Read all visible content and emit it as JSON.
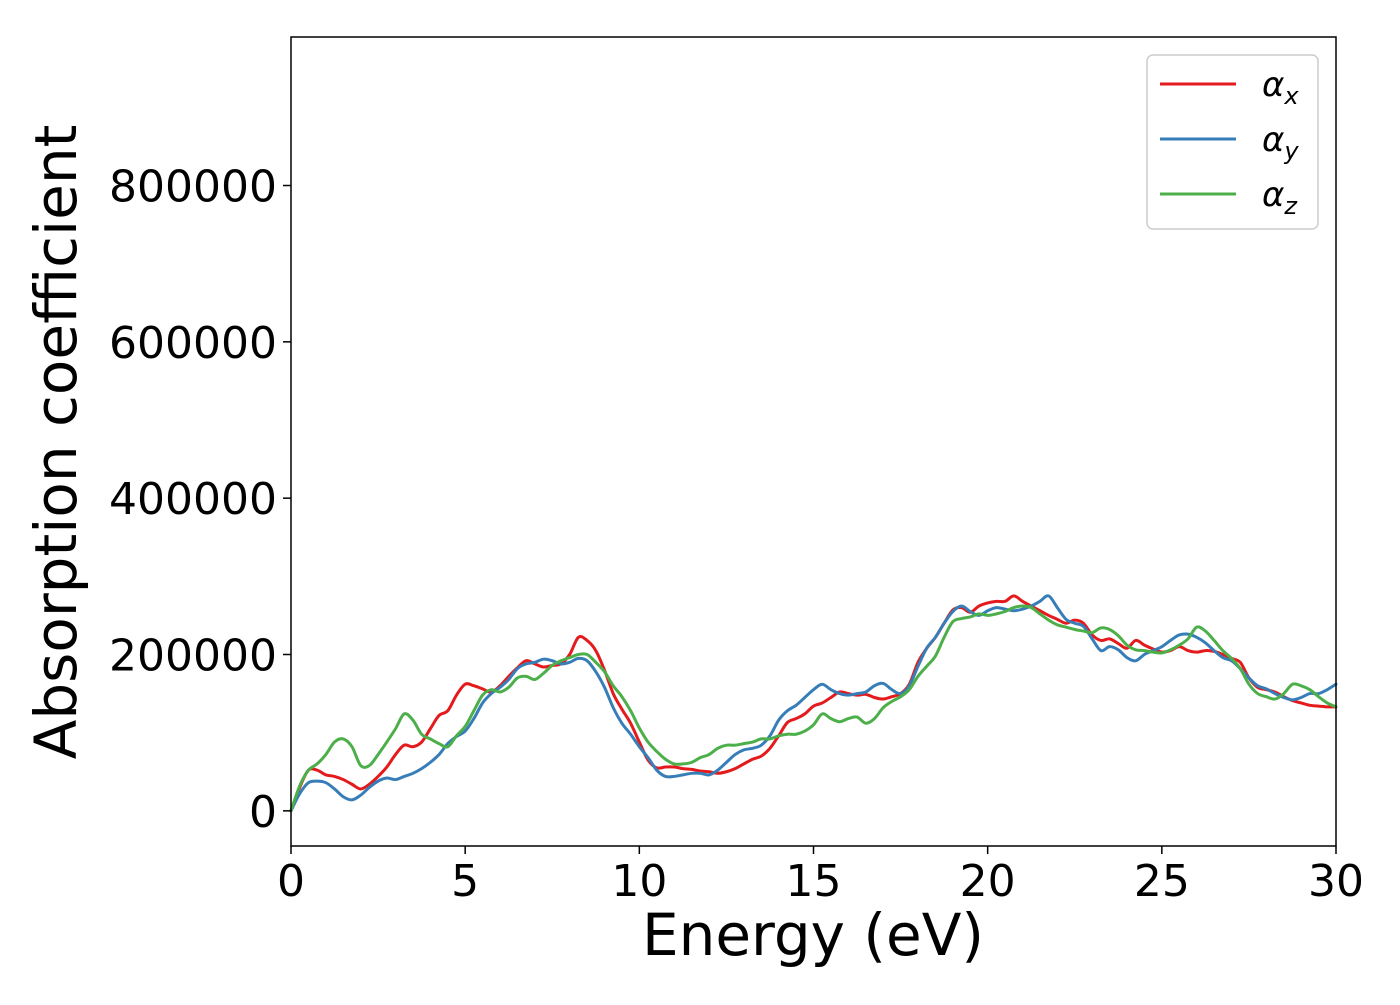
{
  "chart_data": {
    "type": "line",
    "title": "",
    "xlabel": "Energy (eV)",
    "ylabel": "Absorption coefficient",
    "xlim": [
      0,
      30
    ],
    "ylim": [
      -45000,
      990000
    ],
    "xticks": [
      0,
      5,
      10,
      15,
      20,
      25,
      30
    ],
    "yticks": [
      0,
      200000,
      400000,
      600000,
      800000
    ],
    "grid": false,
    "legend": {
      "position": "top-right",
      "entries": [
        {
          "symbol": "α",
          "subscript": "x"
        },
        {
          "symbol": "α",
          "subscript": "y"
        },
        {
          "symbol": "α",
          "subscript": "z"
        }
      ]
    },
    "series": [
      {
        "name": "αx",
        "color": "#e41a1c",
        "x": [
          0,
          0.25,
          0.5,
          0.75,
          1.0,
          1.25,
          1.5,
          1.75,
          2.0,
          2.25,
          2.5,
          2.75,
          3.0,
          3.25,
          3.5,
          3.75,
          4.0,
          4.25,
          4.5,
          4.75,
          5.0,
          5.25,
          5.5,
          5.75,
          6.0,
          6.25,
          6.5,
          6.75,
          7.0,
          7.25,
          7.5,
          7.75,
          8.0,
          8.25,
          8.5,
          8.75,
          9.0,
          9.25,
          9.5,
          9.75,
          10.0,
          10.25,
          10.5,
          10.75,
          11.0,
          11.25,
          11.5,
          11.75,
          12.0,
          12.25,
          12.5,
          12.75,
          13.0,
          13.25,
          13.5,
          13.75,
          14.0,
          14.25,
          14.5,
          14.75,
          15.0,
          15.25,
          15.5,
          15.75,
          16.0,
          16.25,
          16.5,
          16.75,
          17.0,
          17.25,
          17.5,
          17.75,
          18.0,
          18.25,
          18.5,
          18.75,
          19.0,
          19.25,
          19.5,
          19.75,
          20.0,
          20.25,
          20.5,
          20.75,
          21.0,
          21.25,
          21.5,
          21.75,
          22.0,
          22.25,
          22.5,
          22.75,
          23.0,
          23.25,
          23.5,
          23.75,
          24.0,
          24.25,
          24.5,
          24.75,
          25.0,
          25.25,
          25.5,
          25.75,
          26.0,
          26.25,
          26.5,
          26.75,
          27.0,
          27.25,
          27.5,
          27.75,
          28.0,
          28.25,
          28.5,
          28.75,
          29.0,
          29.25,
          29.5,
          29.75,
          30.0
        ],
        "y": [
          0,
          30000,
          52000,
          52000,
          46000,
          44000,
          40000,
          34000,
          28000,
          34000,
          44000,
          56000,
          72000,
          84000,
          82000,
          88000,
          105000,
          122000,
          128000,
          148000,
          162000,
          160000,
          156000,
          152000,
          160000,
          172000,
          183000,
          192000,
          188000,
          184000,
          186000,
          188000,
          200000,
          222000,
          218000,
          205000,
          180000,
          150000,
          130000,
          112000,
          88000,
          65000,
          55000,
          56000,
          56000,
          54000,
          53000,
          51000,
          50000,
          48000,
          50000,
          54000,
          60000,
          66000,
          70000,
          80000,
          96000,
          113000,
          118000,
          124000,
          134000,
          138000,
          145000,
          152000,
          150000,
          148000,
          149000,
          145000,
          143000,
          146000,
          150000,
          162000,
          190000,
          208000,
          222000,
          240000,
          257000,
          260000,
          254000,
          262000,
          266000,
          268000,
          268000,
          275000,
          268000,
          262000,
          256000,
          250000,
          245000,
          240000,
          244000,
          240000,
          225000,
          218000,
          220000,
          214000,
          208000,
          218000,
          212000,
          207000,
          203000,
          205000,
          210000,
          205000,
          203000,
          205000,
          204000,
          200000,
          195000,
          190000,
          170000,
          158000,
          155000,
          152000,
          146000,
          141000,
          138000,
          135000,
          134000,
          133000,
          133000
        ]
      },
      {
        "name": "αy",
        "color": "#377eb8",
        "x": [
          0,
          0.25,
          0.5,
          0.75,
          1.0,
          1.25,
          1.5,
          1.75,
          2.0,
          2.25,
          2.5,
          2.75,
          3.0,
          3.25,
          3.5,
          3.75,
          4.0,
          4.25,
          4.5,
          4.75,
          5.0,
          5.25,
          5.5,
          5.75,
          6.0,
          6.25,
          6.5,
          6.75,
          7.0,
          7.25,
          7.5,
          7.75,
          8.0,
          8.25,
          8.5,
          8.75,
          9.0,
          9.25,
          9.5,
          9.75,
          10.0,
          10.25,
          10.5,
          10.75,
          11.0,
          11.25,
          11.5,
          11.75,
          12.0,
          12.25,
          12.5,
          12.75,
          13.0,
          13.25,
          13.5,
          13.75,
          14.0,
          14.25,
          14.5,
          14.75,
          15.0,
          15.25,
          15.5,
          15.75,
          16.0,
          16.25,
          16.5,
          16.75,
          17.0,
          17.25,
          17.5,
          17.75,
          18.0,
          18.25,
          18.5,
          18.75,
          19.0,
          19.25,
          19.5,
          19.75,
          20.0,
          20.25,
          20.5,
          20.75,
          21.0,
          21.25,
          21.5,
          21.75,
          22.0,
          22.25,
          22.5,
          22.75,
          23.0,
          23.25,
          23.5,
          23.75,
          24.0,
          24.25,
          24.5,
          24.75,
          25.0,
          25.25,
          25.5,
          25.75,
          26.0,
          26.25,
          26.5,
          26.75,
          27.0,
          27.25,
          27.5,
          27.75,
          28.0,
          28.25,
          28.5,
          28.75,
          29.0,
          29.25,
          29.5,
          29.75,
          30.0
        ],
        "y": [
          0,
          22000,
          36000,
          38000,
          36000,
          28000,
          18000,
          14000,
          20000,
          30000,
          38000,
          42000,
          40000,
          44000,
          48000,
          54000,
          62000,
          72000,
          86000,
          95000,
          102000,
          118000,
          138000,
          150000,
          158000,
          168000,
          182000,
          188000,
          190000,
          194000,
          192000,
          188000,
          190000,
          195000,
          192000,
          178000,
          158000,
          132000,
          112000,
          98000,
          82000,
          68000,
          52000,
          44000,
          44000,
          46000,
          48000,
          48000,
          46000,
          52000,
          62000,
          72000,
          78000,
          80000,
          84000,
          96000,
          116000,
          128000,
          135000,
          145000,
          155000,
          162000,
          155000,
          150000,
          148000,
          150000,
          152000,
          160000,
          163000,
          155000,
          150000,
          160000,
          185000,
          208000,
          222000,
          240000,
          255000,
          262000,
          255000,
          250000,
          256000,
          260000,
          258000,
          256000,
          258000,
          262000,
          268000,
          275000,
          260000,
          245000,
          240000,
          236000,
          220000,
          205000,
          210000,
          206000,
          196000,
          192000,
          200000,
          205000,
          210000,
          218000,
          225000,
          226000,
          222000,
          215000,
          205000,
          196000,
          192000,
          182000,
          170000,
          160000,
          156000,
          150000,
          145000,
          142000,
          145000,
          150000,
          150000,
          155000,
          162000
        ]
      },
      {
        "name": "αz",
        "color": "#4daf4a",
        "x": [
          0,
          0.25,
          0.5,
          0.75,
          1.0,
          1.25,
          1.5,
          1.75,
          2.0,
          2.25,
          2.5,
          2.75,
          3.0,
          3.25,
          3.5,
          3.75,
          4.0,
          4.25,
          4.5,
          4.75,
          5.0,
          5.25,
          5.5,
          5.75,
          6.0,
          6.25,
          6.5,
          6.75,
          7.0,
          7.25,
          7.5,
          7.75,
          8.0,
          8.25,
          8.5,
          8.75,
          9.0,
          9.25,
          9.5,
          9.75,
          10.0,
          10.25,
          10.5,
          10.75,
          11.0,
          11.25,
          11.5,
          11.75,
          12.0,
          12.25,
          12.5,
          12.75,
          13.0,
          13.25,
          13.5,
          13.75,
          14.0,
          14.25,
          14.5,
          14.75,
          15.0,
          15.25,
          15.5,
          15.75,
          16.0,
          16.25,
          16.5,
          16.75,
          17.0,
          17.25,
          17.5,
          17.75,
          18.0,
          18.25,
          18.5,
          18.75,
          19.0,
          19.25,
          19.5,
          19.75,
          20.0,
          20.25,
          20.5,
          20.75,
          21.0,
          21.25,
          21.5,
          21.75,
          22.0,
          22.25,
          22.5,
          22.75,
          23.0,
          23.25,
          23.5,
          23.75,
          24.0,
          24.25,
          24.5,
          24.75,
          25.0,
          25.25,
          25.5,
          25.75,
          26.0,
          26.25,
          26.5,
          26.75,
          27.0,
          27.25,
          27.5,
          27.75,
          28.0,
          28.25,
          28.5,
          28.75,
          29.0,
          29.25,
          29.5,
          29.75,
          30.0
        ],
        "y": [
          0,
          32000,
          52000,
          60000,
          72000,
          88000,
          92000,
          82000,
          58000,
          58000,
          72000,
          88000,
          105000,
          124000,
          116000,
          98000,
          92000,
          86000,
          82000,
          96000,
          108000,
          128000,
          148000,
          155000,
          152000,
          158000,
          170000,
          172000,
          168000,
          176000,
          186000,
          192000,
          196000,
          200000,
          200000,
          190000,
          178000,
          160000,
          146000,
          128000,
          106000,
          88000,
          76000,
          66000,
          60000,
          60000,
          62000,
          68000,
          72000,
          80000,
          84000,
          84000,
          86000,
          88000,
          92000,
          92000,
          96000,
          98000,
          98000,
          102000,
          110000,
          124000,
          118000,
          114000,
          118000,
          120000,
          112000,
          118000,
          132000,
          140000,
          146000,
          155000,
          172000,
          185000,
          198000,
          222000,
          242000,
          246000,
          248000,
          252000,
          250000,
          252000,
          255000,
          260000,
          262000,
          260000,
          252000,
          244000,
          238000,
          235000,
          232000,
          230000,
          228000,
          234000,
          232000,
          224000,
          212000,
          206000,
          205000,
          203000,
          202000,
          206000,
          212000,
          220000,
          235000,
          230000,
          218000,
          205000,
          195000,
          182000,
          162000,
          150000,
          146000,
          143000,
          150000,
          162000,
          160000,
          155000,
          146000,
          138000,
          133000
        ]
      }
    ]
  }
}
